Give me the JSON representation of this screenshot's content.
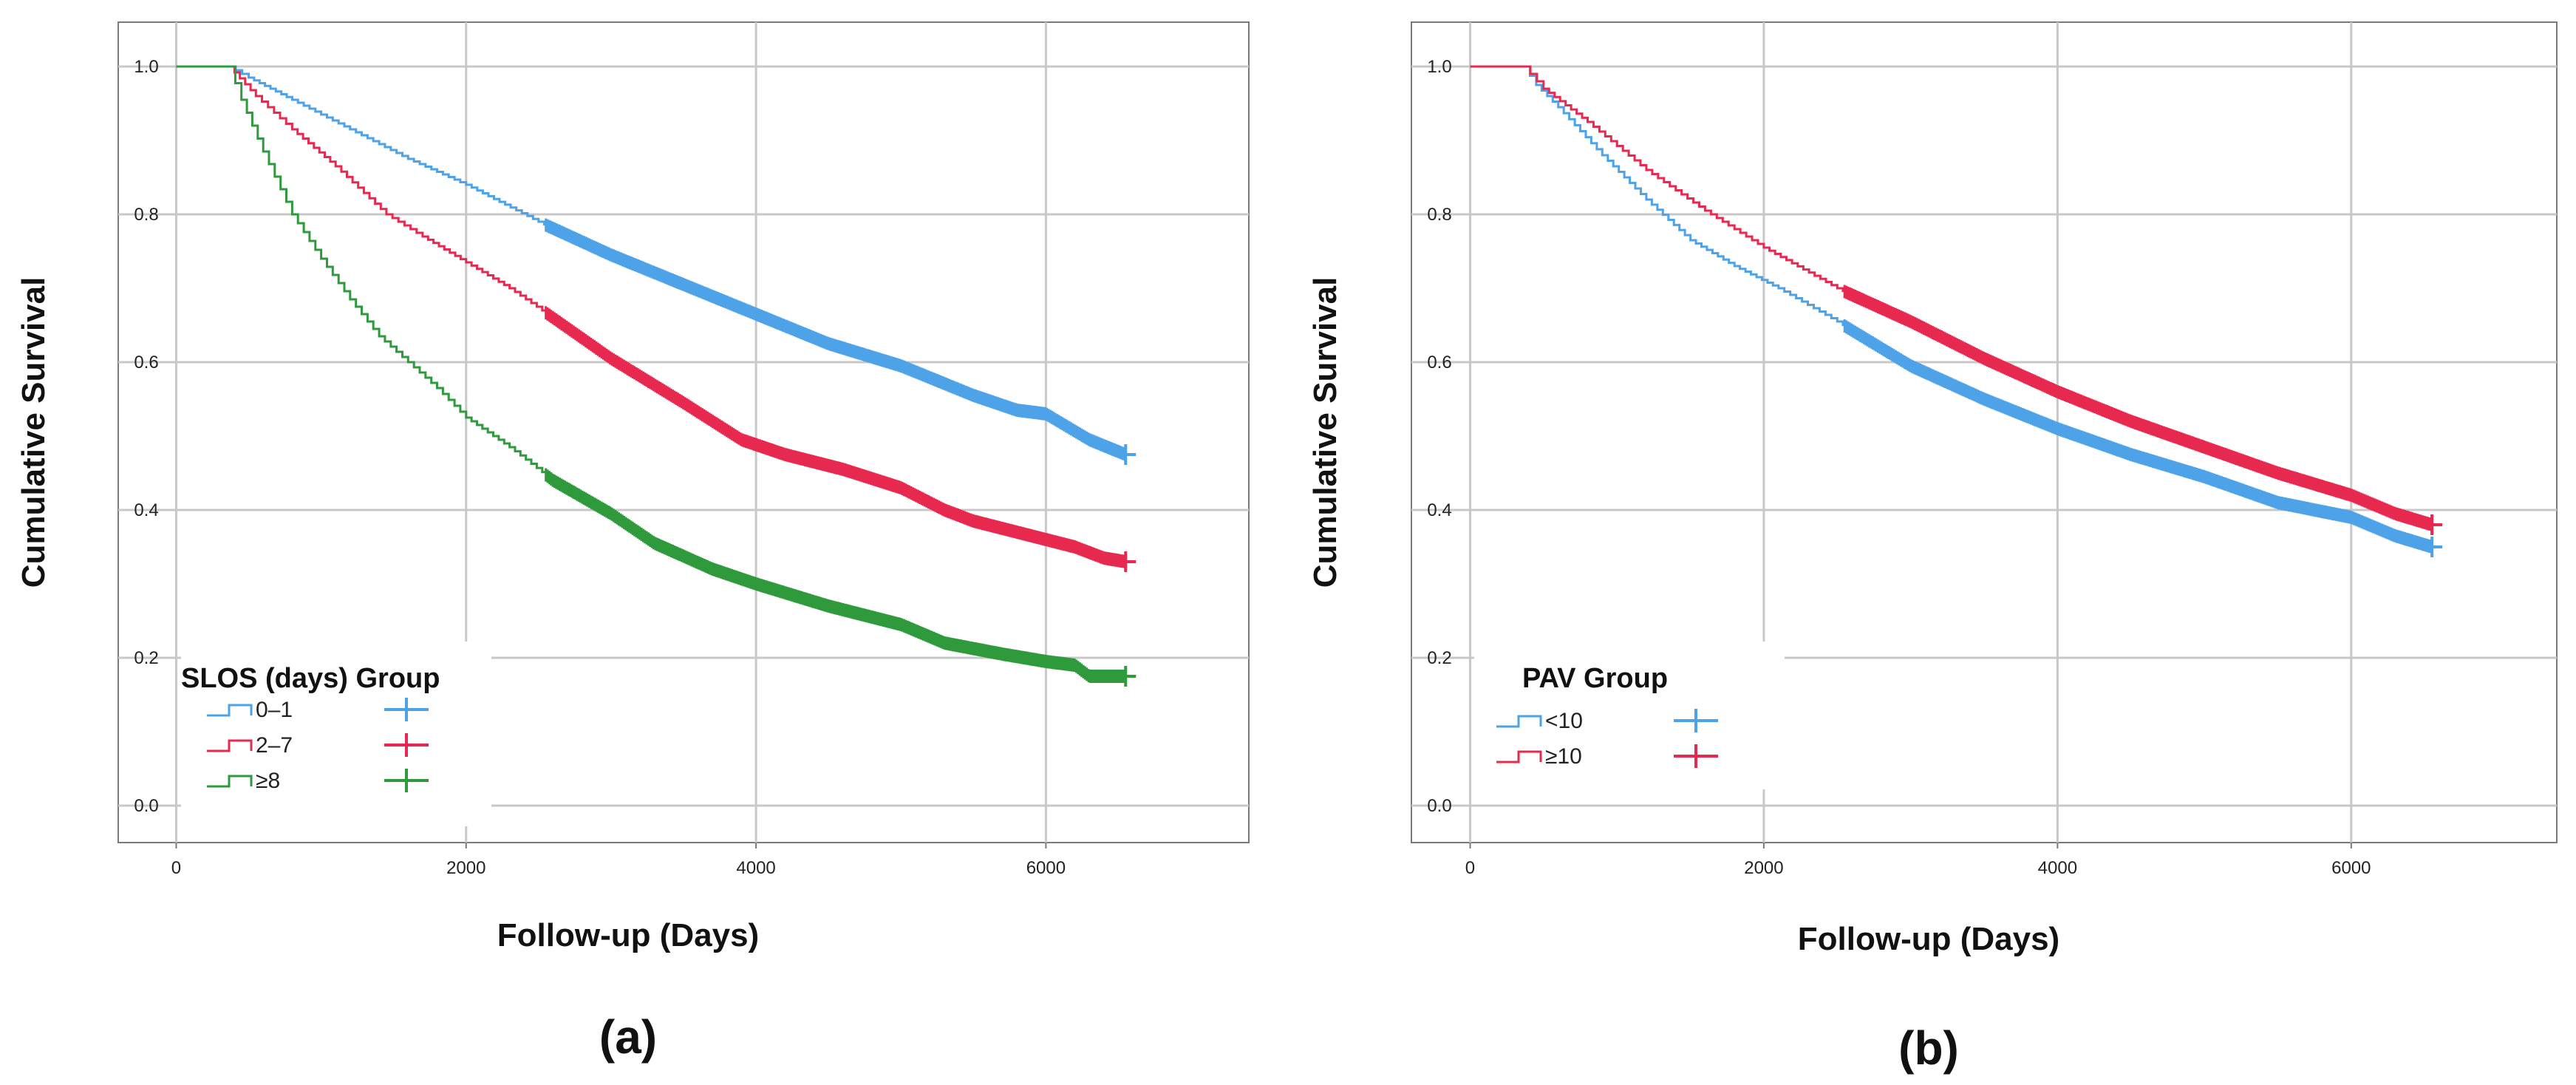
{
  "chart_data": [
    {
      "type": "line",
      "panel_label": "(a)",
      "xlabel": "Follow-up (Days)",
      "ylabel": "Cumulative Survival",
      "xlim": [
        -400,
        7400
      ],
      "ylim": [
        -0.05,
        1.06
      ],
      "xticks": [
        "0",
        "2000",
        "4000",
        "6000"
      ],
      "xtick_values": [
        0,
        2000,
        4000,
        6000
      ],
      "yticks": [
        "0.0",
        "0.2",
        "0.4",
        "0.6",
        "0.8",
        "1.0"
      ],
      "ytick_values": [
        0.0,
        0.2,
        0.4,
        0.6,
        0.8,
        1.0
      ],
      "grid": true,
      "legend": {
        "title": "SLOS (days) Group",
        "position": "lower-left"
      },
      "censor_start": 2550,
      "series": [
        {
          "name": "0–1",
          "color": "#4ea3e8",
          "x": [
            0,
            365,
            500,
            800,
            1200,
            1600,
            2000,
            2500,
            3000,
            3500,
            4000,
            4500,
            5000,
            5500,
            5800,
            6000,
            6300,
            6550
          ],
          "y": [
            1.0,
            1.0,
            0.985,
            0.955,
            0.915,
            0.875,
            0.84,
            0.79,
            0.745,
            0.705,
            0.665,
            0.625,
            0.595,
            0.555,
            0.535,
            0.53,
            0.495,
            0.475
          ]
        },
        {
          "name": "2–7",
          "color": "#e8294f",
          "x": [
            0,
            365,
            550,
            800,
            1100,
            1450,
            1700,
            2000,
            2300,
            2600,
            3000,
            3500,
            3900,
            4200,
            4600,
            5000,
            5300,
            5500,
            5800,
            6200,
            6400,
            6550
          ],
          "y": [
            1.0,
            1.0,
            0.96,
            0.915,
            0.865,
            0.8,
            0.77,
            0.735,
            0.7,
            0.66,
            0.605,
            0.545,
            0.495,
            0.475,
            0.455,
            0.43,
            0.4,
            0.385,
            0.37,
            0.35,
            0.335,
            0.33
          ]
        },
        {
          "name": "≥8",
          "color": "#2e9a3c",
          "x": [
            0,
            365,
            450,
            600,
            800,
            1000,
            1200,
            1400,
            1600,
            1800,
            2000,
            2300,
            2600,
            3000,
            3300,
            3700,
            4000,
            4500,
            5000,
            5300,
            5700,
            6000,
            6200,
            6300,
            6550
          ],
          "y": [
            1.0,
            1.0,
            0.955,
            0.885,
            0.8,
            0.74,
            0.685,
            0.635,
            0.6,
            0.565,
            0.525,
            0.485,
            0.44,
            0.395,
            0.355,
            0.32,
            0.3,
            0.27,
            0.245,
            0.22,
            0.205,
            0.195,
            0.19,
            0.175,
            0.175
          ]
        }
      ]
    },
    {
      "type": "line",
      "panel_label": "(b)",
      "xlabel": "Follow-up (Days)",
      "ylabel": "Cumulative Survival",
      "xlim": [
        -400,
        7400
      ],
      "ylim": [
        -0.05,
        1.06
      ],
      "xticks": [
        "0",
        "2000",
        "4000",
        "6000"
      ],
      "xtick_values": [
        0,
        2000,
        4000,
        6000
      ],
      "yticks": [
        "0.0",
        "0.2",
        "0.4",
        "0.6",
        "0.8",
        "1.0"
      ],
      "ytick_values": [
        0.0,
        0.2,
        0.4,
        0.6,
        0.8,
        1.0
      ],
      "grid": true,
      "legend": {
        "title": "PAV Group",
        "position": "lower-left"
      },
      "censor_start": 2550,
      "series": [
        {
          "name": "<10",
          "color": "#4ea3e8",
          "x": [
            0,
            365,
            450,
            600,
            900,
            1200,
            1500,
            1800,
            2100,
            2500,
            3000,
            3500,
            4000,
            4500,
            5000,
            5500,
            6000,
            6300,
            6550
          ],
          "y": [
            1.0,
            1.0,
            0.975,
            0.945,
            0.88,
            0.82,
            0.765,
            0.73,
            0.7,
            0.655,
            0.595,
            0.55,
            0.51,
            0.475,
            0.445,
            0.41,
            0.39,
            0.365,
            0.35
          ]
        },
        {
          "name": "≥10",
          "color": "#e8294f",
          "x": [
            0,
            365,
            500,
            800,
            1200,
            1600,
            2000,
            2500,
            3000,
            3500,
            4000,
            4500,
            5000,
            5500,
            6000,
            6300,
            6550
          ],
          "y": [
            1.0,
            1.0,
            0.97,
            0.925,
            0.86,
            0.805,
            0.755,
            0.7,
            0.655,
            0.605,
            0.56,
            0.52,
            0.485,
            0.45,
            0.42,
            0.395,
            0.38
          ]
        }
      ]
    }
  ]
}
